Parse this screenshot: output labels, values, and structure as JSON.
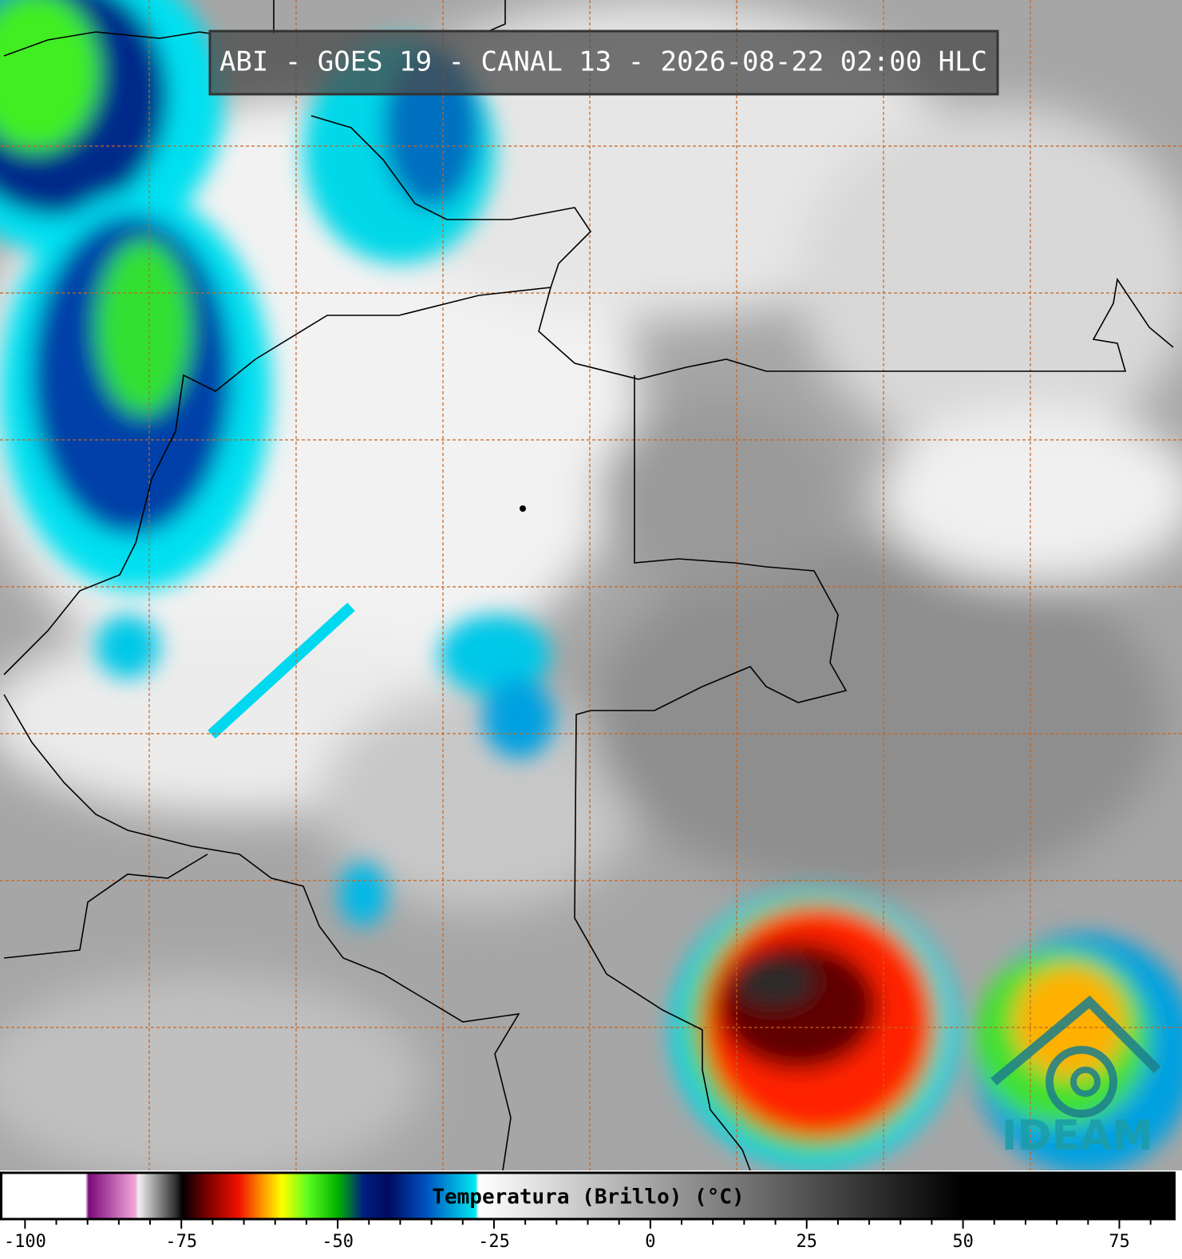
{
  "title": "ABI - GOES 19 - CANAL 13 - 2026-08-22 02:00 HLC",
  "logo": "IDEAM",
  "colorbar": {
    "label": "Temperatura (Brillo) (°C)",
    "range": [
      -104,
      84
    ],
    "ticks": [
      -100,
      -75,
      -50,
      -25,
      0,
      25,
      50,
      75
    ],
    "minor_ticks": [
      -95,
      -90,
      -85,
      -80,
      -70,
      -65,
      -60,
      -55,
      -45,
      -40,
      -35,
      -30,
      -20,
      -15,
      -10,
      -5,
      5,
      10,
      15,
      20,
      30,
      35,
      40,
      45,
      55,
      60,
      65,
      70,
      80
    ],
    "stops": [
      {
        "value": -104,
        "color": "#ffffff"
      },
      {
        "value": -90.5,
        "color": "#ffffff"
      },
      {
        "value": -90,
        "color": "#7a0a7a"
      },
      {
        "value": -82.5,
        "color": "#f4a6d8"
      },
      {
        "value": -82,
        "color": "#f0f0f0"
      },
      {
        "value": -76,
        "color": "#303030"
      },
      {
        "value": -75,
        "color": "#000000"
      },
      {
        "value": -71,
        "color": "#7a0000"
      },
      {
        "value": -66,
        "color": "#f01000"
      },
      {
        "value": -62,
        "color": "#ff9a00"
      },
      {
        "value": -59,
        "color": "#ffff00"
      },
      {
        "value": -55,
        "color": "#60ff20"
      },
      {
        "value": -50,
        "color": "#00b000"
      },
      {
        "value": -46,
        "color": "#002080"
      },
      {
        "value": -42,
        "color": "#000a60"
      },
      {
        "value": -36,
        "color": "#0050c0"
      },
      {
        "value": -28,
        "color": "#00e8f0"
      },
      {
        "value": -27.5,
        "color": "#ffffff"
      },
      {
        "value": 50,
        "color": "#000000"
      },
      {
        "value": 84,
        "color": "#000000"
      }
    ]
  }
}
